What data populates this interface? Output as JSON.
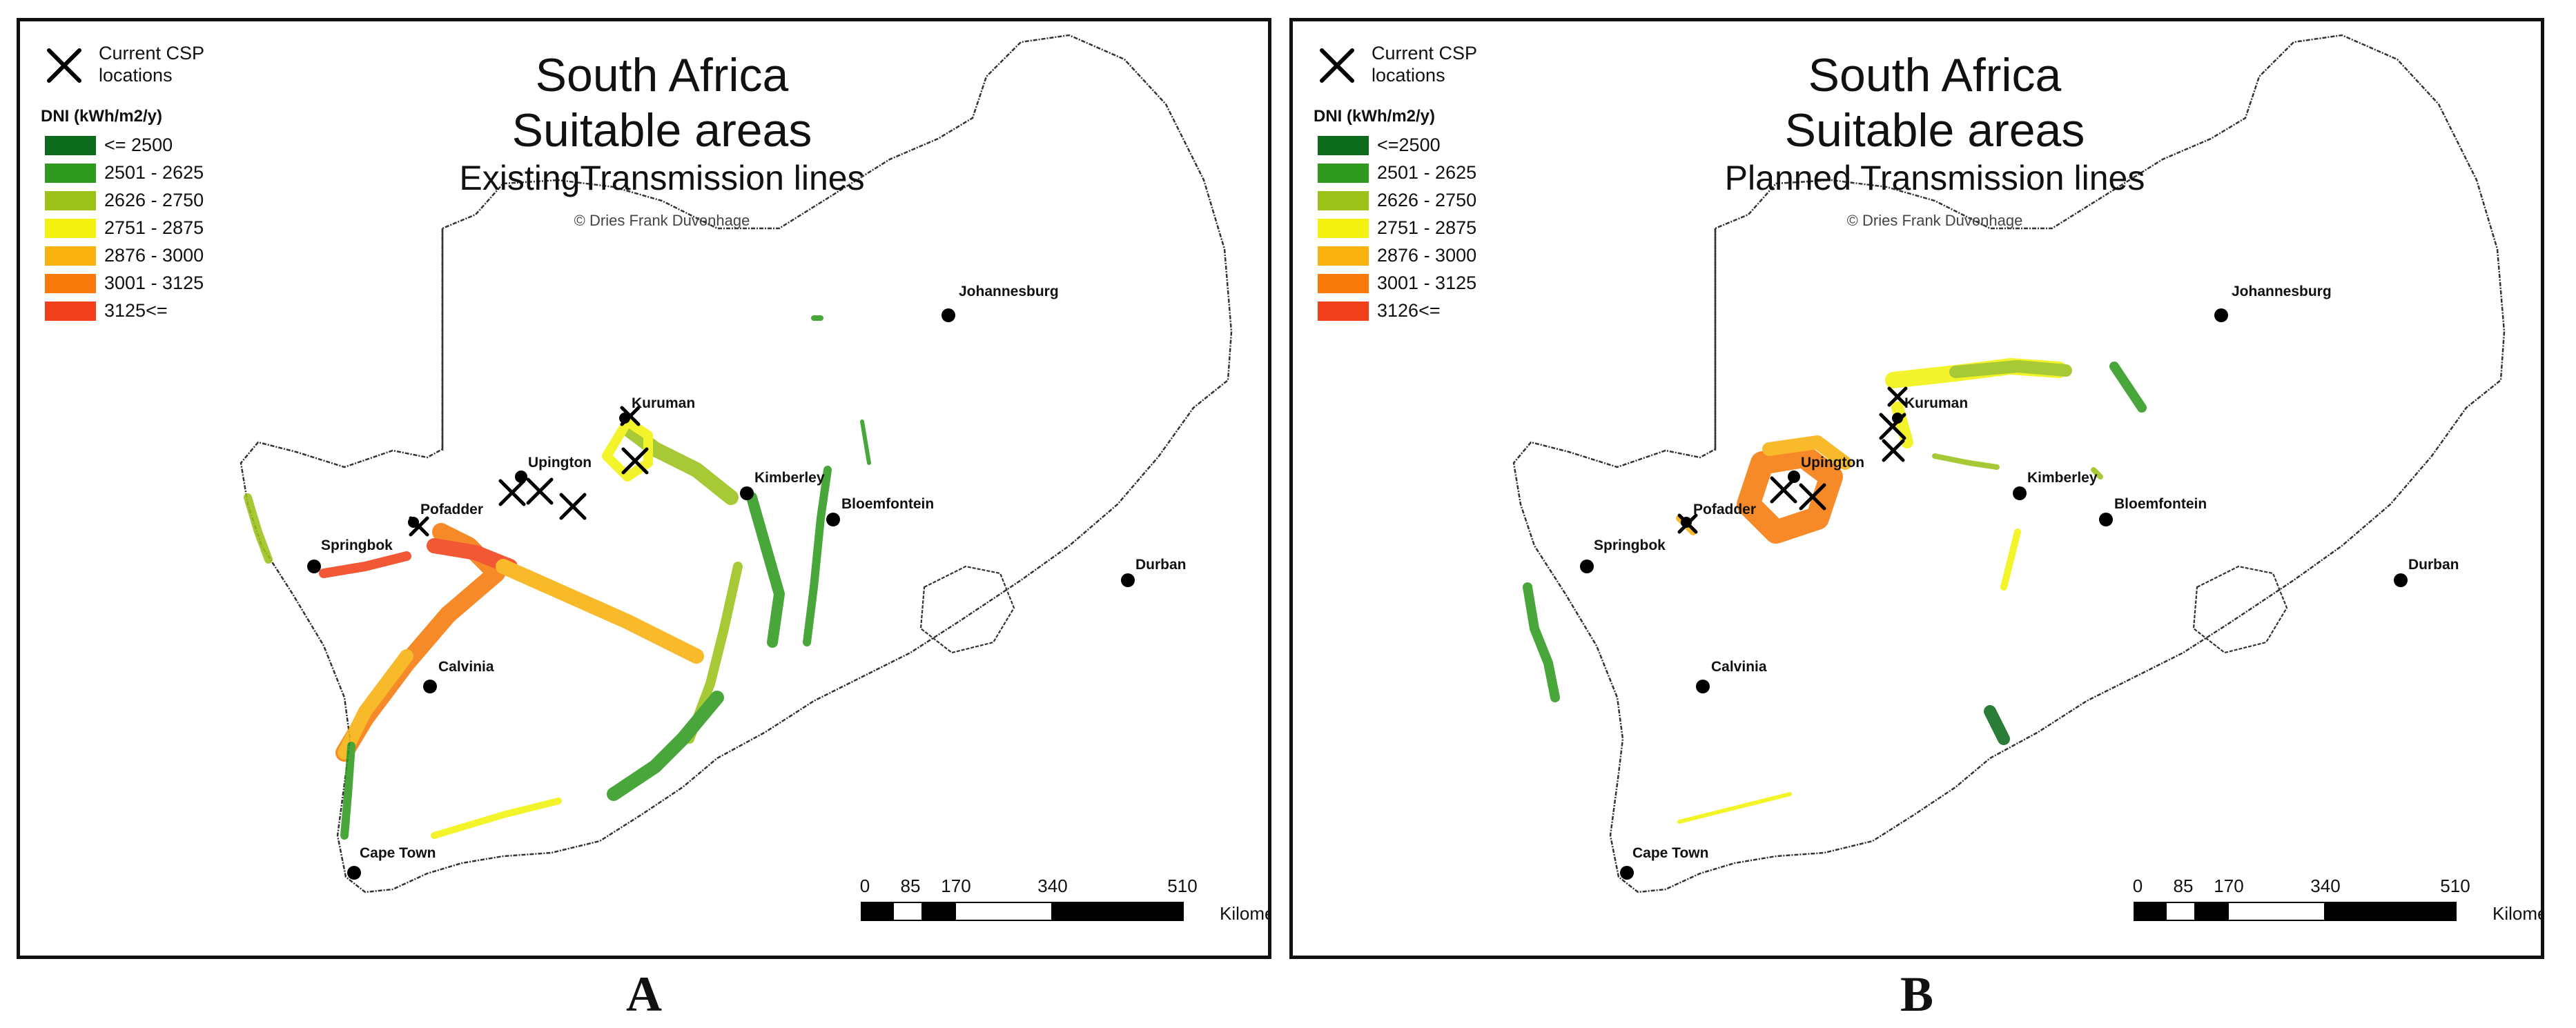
{
  "legend": {
    "csp_label": "Current CSP locations",
    "dni_title": "DNI (kWh/m2/y)"
  },
  "colors": {
    "c1": "#0b6b1a",
    "c2": "#2f9a1f",
    "c3": "#9cc21a",
    "c4": "#f2f20e",
    "c5": "#f8b10d",
    "c6": "#f77a0b",
    "c7": "#f1401b"
  },
  "panels": [
    {
      "title_line1": "South Africa",
      "title_line2": "Suitable areas",
      "title_line3": "ExistingTransmission lines",
      "copyright": "© Dries Frank Duvenhage",
      "legend_classes": [
        "<= 2500",
        "2501 - 2625",
        "2626 - 2750",
        "2751 - 2875",
        "2876 - 3000",
        "3001 - 3125",
        "3125<="
      ],
      "panel_label": "A"
    },
    {
      "title_line1": "South Africa",
      "title_line2": "Suitable areas",
      "title_line3": "Planned Transmission lines",
      "copyright": "© Dries Frank Duvenhage",
      "legend_classes": [
        "<=2500",
        "2501 - 2625",
        "2626 - 2750",
        "2751 - 2875",
        "2876 - 3000",
        "3001 - 3125",
        "3126<="
      ],
      "panel_label": "B"
    }
  ],
  "cities": [
    "Johannesburg",
    "Kuruman",
    "Upington",
    "Kimberley",
    "Bloemfontein",
    "Pofadder",
    "Springbok",
    "Durban",
    "Calvinia",
    "Cape Town"
  ],
  "scalebar": {
    "ticks": [
      "0",
      "85",
      "170",
      "340",
      "510"
    ],
    "unit": "Kilometers"
  }
}
